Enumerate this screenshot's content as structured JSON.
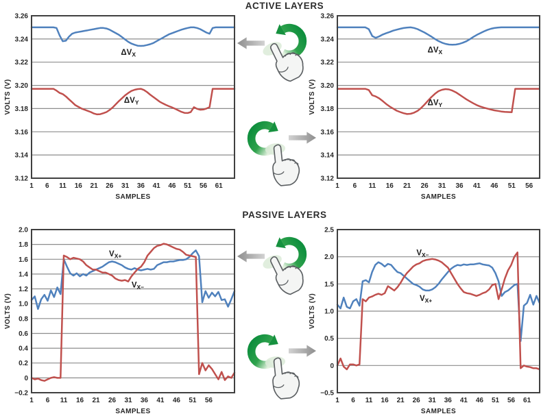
{
  "sections": [
    {
      "title": "ACTIVE LAYERS"
    },
    {
      "title": "PASSIVE LAYERS"
    }
  ],
  "icons": {
    "rotate_ccw": "counterclockwise-rotation-gesture",
    "rotate_cw": "clockwise-rotation-gesture",
    "arrow_left": "left-arrow",
    "arrow_right": "right-arrow",
    "hand": "pointing-hand"
  },
  "colors": {
    "series_blue": "#4F81BD",
    "series_red": "#C0504D",
    "grid": "#8C8C8C",
    "axis": "#3F3F3F",
    "green_dark": "#0F8F3E",
    "green_light": "#E4F1E0",
    "gray_arrow": "#9A9A9A",
    "text": "#262626"
  },
  "chart_data": [
    {
      "id": "active-left",
      "type": "line",
      "title": "ACTIVE LAYERS",
      "xlabel": "SAMPLES",
      "ylabel": "VOLTS (V)",
      "grid": true,
      "legend": "inline-annotations",
      "xlim": [
        1,
        66
      ],
      "ylim": [
        3.12,
        3.26
      ],
      "x_ticks": [
        1,
        6,
        11,
        16,
        21,
        26,
        31,
        36,
        41,
        46,
        51,
        56,
        61
      ],
      "y_ticks": [
        3.26,
        3.24,
        3.22,
        3.2,
        3.18,
        3.16,
        3.14,
        3.12
      ],
      "y_tick_labels": [
        "3.26",
        "3.24",
        "3.22",
        "3.20",
        "3.18",
        "3.16",
        "3.14",
        "3.12"
      ],
      "series": [
        {
          "name": "ΔVX",
          "color": "#4F81BD",
          "values": [
            3.25,
            3.25,
            3.25,
            3.25,
            3.25,
            3.25,
            3.25,
            3.25,
            3.2495,
            3.243,
            3.238,
            3.2385,
            3.242,
            3.2445,
            3.2455,
            3.246,
            3.2465,
            3.247,
            3.2475,
            3.248,
            3.2485,
            3.249,
            3.2495,
            3.2495,
            3.249,
            3.248,
            3.2465,
            3.245,
            3.2435,
            3.2415,
            3.2395,
            3.2375,
            3.236,
            3.235,
            3.2342,
            3.234,
            3.2342,
            3.2348,
            3.2355,
            3.2365,
            3.238,
            3.2395,
            3.241,
            3.2425,
            3.244,
            3.245,
            3.246,
            3.247,
            3.248,
            3.2488,
            3.2495,
            3.25,
            3.25,
            3.2495,
            3.2485,
            3.247,
            3.2455,
            3.2445,
            3.2495,
            3.25,
            3.25,
            3.25,
            3.25,
            3.25,
            3.25,
            3.25
          ]
        },
        {
          "name": "ΔVY",
          "color": "#C0504D",
          "values": [
            3.197,
            3.197,
            3.197,
            3.197,
            3.197,
            3.197,
            3.197,
            3.197,
            3.1955,
            3.1935,
            3.1925,
            3.1905,
            3.188,
            3.1855,
            3.183,
            3.1815,
            3.18,
            3.179,
            3.178,
            3.177,
            3.1757,
            3.175,
            3.1752,
            3.176,
            3.177,
            3.1788,
            3.181,
            3.1838,
            3.1865,
            3.189,
            3.1915,
            3.1935,
            3.1952,
            3.1962,
            3.1968,
            3.197,
            3.196,
            3.1942,
            3.192,
            3.19,
            3.188,
            3.186,
            3.1845,
            3.1832,
            3.182,
            3.181,
            3.1798,
            3.1785,
            3.1772,
            3.1763,
            3.1762,
            3.177,
            3.1812,
            3.1798,
            3.179,
            3.1792,
            3.18,
            3.1812,
            3.197,
            3.197,
            3.197,
            3.197,
            3.197,
            3.197,
            3.197,
            3.197
          ]
        }
      ],
      "annotations": [
        {
          "main": "ΔV",
          "sub": "X",
          "x": 32,
          "y": 3.2263
        },
        {
          "main": "ΔV",
          "sub": "Y",
          "x": 33,
          "y": 3.185
        }
      ]
    },
    {
      "id": "active-right",
      "type": "line",
      "title": "ACTIVE LAYERS",
      "xlabel": "SAMPLES",
      "ylabel": "VOLTS (V)",
      "grid": true,
      "legend": "inline-annotations",
      "xlim": [
        1,
        59
      ],
      "ylim": [
        3.12,
        3.26
      ],
      "x_ticks": [
        1,
        6,
        11,
        16,
        21,
        26,
        31,
        36,
        41,
        46,
        51,
        56
      ],
      "y_ticks": [
        3.26,
        3.24,
        3.22,
        3.2,
        3.18,
        3.16,
        3.14,
        3.12
      ],
      "y_tick_labels": [
        "3.26",
        "3.24",
        "3.22",
        "3.20",
        "3.18",
        "3.16",
        "3.14",
        "3.12"
      ],
      "series": [
        {
          "name": "ΔVX",
          "color": "#4F81BD",
          "values": [
            3.25,
            3.25,
            3.25,
            3.25,
            3.25,
            3.25,
            3.25,
            3.25,
            3.25,
            3.2485,
            3.2425,
            3.241,
            3.2422,
            3.2438,
            3.245,
            3.246,
            3.2472,
            3.248,
            3.2488,
            3.2494,
            3.2498,
            3.25,
            3.2495,
            3.2485,
            3.247,
            3.2455,
            3.2438,
            3.242,
            3.24,
            3.2382,
            3.2368,
            3.2358,
            3.2352,
            3.235,
            3.2352,
            3.2358,
            3.2368,
            3.238,
            3.2398,
            3.2418,
            3.2435,
            3.245,
            3.2465,
            3.2478,
            3.2488,
            3.2494,
            3.2498,
            3.25,
            3.25,
            3.25,
            3.25,
            3.25,
            3.25,
            3.25,
            3.25,
            3.25,
            3.25,
            3.25,
            3.25
          ]
        },
        {
          "name": "ΔVY",
          "color": "#C0504D",
          "values": [
            3.197,
            3.197,
            3.197,
            3.197,
            3.197,
            3.197,
            3.197,
            3.197,
            3.197,
            3.196,
            3.1915,
            3.1905,
            3.1888,
            3.1865,
            3.184,
            3.1818,
            3.18,
            3.1782,
            3.177,
            3.176,
            3.1753,
            3.1755,
            3.1765,
            3.178,
            3.1805,
            3.1835,
            3.1868,
            3.19,
            3.1928,
            3.195,
            3.1962,
            3.1968,
            3.1965,
            3.1955,
            3.194,
            3.192,
            3.19,
            3.188,
            3.1862,
            3.1845,
            3.183,
            3.1818,
            3.1808,
            3.18,
            3.1792,
            3.1785,
            3.178,
            3.1775,
            3.1772,
            3.177,
            3.1768,
            3.197,
            3.197,
            3.197,
            3.197,
            3.197,
            3.197,
            3.197,
            3.197
          ]
        }
      ],
      "annotations": [
        {
          "main": "ΔV",
          "sub": "X",
          "x": 29,
          "y": 3.2285
        },
        {
          "main": "ΔV",
          "sub": "Y",
          "x": 29,
          "y": 3.183
        }
      ]
    },
    {
      "id": "passive-left",
      "type": "line",
      "title": "PASSIVE LAYERS",
      "xlabel": "SAMPLES",
      "ylabel": "VOLTS (V)",
      "grid": true,
      "legend": "inline-annotations",
      "xlim": [
        1,
        64
      ],
      "ylim": [
        -0.2,
        2.0
      ],
      "x_ticks": [
        1,
        6,
        11,
        16,
        21,
        26,
        31,
        36,
        41,
        46,
        51,
        56
      ],
      "y_ticks": [
        2.0,
        1.8,
        1.6,
        1.4,
        1.2,
        1.0,
        0.8,
        0.6,
        0.4,
        0.2,
        0,
        -0.2
      ],
      "y_tick_labels": [
        "2.0",
        "1.8",
        "1.6",
        "1.4",
        "1.2",
        "1.0",
        "0.8",
        "0.6",
        "0.4",
        "0.2",
        "0",
        "−0.2"
      ],
      "series": [
        {
          "name": "VX+",
          "color": "#4F81BD",
          "values": [
            1.05,
            1.1,
            0.93,
            1.06,
            1.12,
            1.04,
            1.18,
            1.09,
            1.22,
            1.13,
            1.6,
            1.5,
            1.41,
            1.38,
            1.41,
            1.37,
            1.4,
            1.38,
            1.42,
            1.44,
            1.46,
            1.48,
            1.5,
            1.53,
            1.56,
            1.57,
            1.56,
            1.54,
            1.52,
            1.49,
            1.47,
            1.46,
            1.48,
            1.46,
            1.45,
            1.46,
            1.47,
            1.46,
            1.47,
            1.52,
            1.54,
            1.56,
            1.56,
            1.57,
            1.57,
            1.58,
            1.59,
            1.59,
            1.6,
            1.63,
            1.68,
            1.72,
            1.64,
            1.02,
            1.17,
            1.08,
            1.15,
            1.1,
            1.16,
            1.05,
            1.06,
            0.96,
            1.06,
            1.17
          ]
        },
        {
          "name": "VX−",
          "color": "#C0504D",
          "values": [
            0.0,
            -0.02,
            -0.01,
            -0.03,
            -0.04,
            -0.02,
            0.0,
            0.01,
            0.0,
            0.0,
            1.65,
            1.63,
            1.6,
            1.62,
            1.61,
            1.6,
            1.57,
            1.52,
            1.49,
            1.46,
            1.46,
            1.44,
            1.42,
            1.42,
            1.4,
            1.38,
            1.34,
            1.32,
            1.31,
            1.32,
            1.3,
            1.37,
            1.42,
            1.47,
            1.5,
            1.56,
            1.65,
            1.7,
            1.75,
            1.78,
            1.79,
            1.81,
            1.8,
            1.78,
            1.76,
            1.74,
            1.73,
            1.7,
            1.66,
            1.65,
            1.64,
            1.63,
            0.05,
            0.2,
            0.1,
            0.17,
            0.12,
            0.05,
            -0.02,
            0.08,
            -0.03,
            0.02,
            0.0,
            0.07
          ]
        }
      ],
      "annotations": [
        {
          "main": "V",
          "sub": "X+",
          "x": 27,
          "y": 1.64
        },
        {
          "main": "V",
          "sub": "X−",
          "x": 34,
          "y": 1.22
        }
      ]
    },
    {
      "id": "passive-right",
      "type": "line",
      "title": "PASSIVE LAYERS",
      "xlabel": "SAMPLES",
      "ylabel": "VOLTS (V)",
      "grid": true,
      "legend": "inline-annotations",
      "xlim": [
        1,
        65
      ],
      "ylim": [
        -0.5,
        2.5
      ],
      "x_ticks": [
        1,
        6,
        11,
        16,
        21,
        26,
        31,
        36,
        41,
        46,
        51,
        56,
        61
      ],
      "y_ticks": [
        2.5,
        2.0,
        1.5,
        1.0,
        0.5,
        0,
        -0.5
      ],
      "y_tick_labels": [
        "2.5",
        "2.0",
        "1.5",
        "1.0",
        "0.5",
        "0",
        "−0.5"
      ],
      "series": [
        {
          "name": "VX+",
          "color": "#4F81BD",
          "values": [
            1.12,
            1.05,
            1.25,
            1.08,
            1.05,
            1.18,
            1.22,
            1.1,
            1.55,
            1.57,
            1.53,
            1.72,
            1.85,
            1.9,
            1.87,
            1.82,
            1.87,
            1.85,
            1.78,
            1.72,
            1.7,
            1.65,
            1.6,
            1.55,
            1.5,
            1.48,
            1.45,
            1.4,
            1.38,
            1.38,
            1.4,
            1.44,
            1.5,
            1.58,
            1.65,
            1.72,
            1.78,
            1.82,
            1.85,
            1.84,
            1.86,
            1.85,
            1.86,
            1.86,
            1.87,
            1.88,
            1.86,
            1.85,
            1.84,
            1.8,
            1.7,
            1.55,
            1.28,
            1.35,
            1.38,
            1.43,
            1.48,
            1.5,
            0.45,
            1.1,
            1.15,
            1.3,
            1.12,
            1.28,
            1.15
          ]
        },
        {
          "name": "VX−",
          "color": "#C0504D",
          "values": [
            0.0,
            0.13,
            -0.02,
            -0.07,
            0.02,
            0.02,
            0.0,
            0.02,
            1.22,
            1.18,
            1.25,
            1.27,
            1.3,
            1.32,
            1.3,
            1.33,
            1.46,
            1.42,
            1.38,
            1.44,
            1.52,
            1.62,
            1.7,
            1.76,
            1.82,
            1.86,
            1.88,
            1.92,
            1.94,
            1.95,
            1.96,
            1.95,
            1.93,
            1.9,
            1.85,
            1.8,
            1.7,
            1.6,
            1.5,
            1.42,
            1.35,
            1.33,
            1.32,
            1.3,
            1.28,
            1.3,
            1.33,
            1.35,
            1.4,
            1.48,
            1.5,
            1.22,
            1.4,
            1.6,
            1.75,
            1.85,
            2.0,
            2.08,
            -0.05,
            0.0,
            -0.02,
            -0.03,
            -0.05,
            -0.05,
            -0.07
          ]
        }
      ],
      "annotations": [
        {
          "main": "V",
          "sub": "X−",
          "x": 28,
          "y": 2.03
        },
        {
          "main": "V",
          "sub": "X+",
          "x": 29,
          "y": 1.19
        }
      ]
    }
  ]
}
